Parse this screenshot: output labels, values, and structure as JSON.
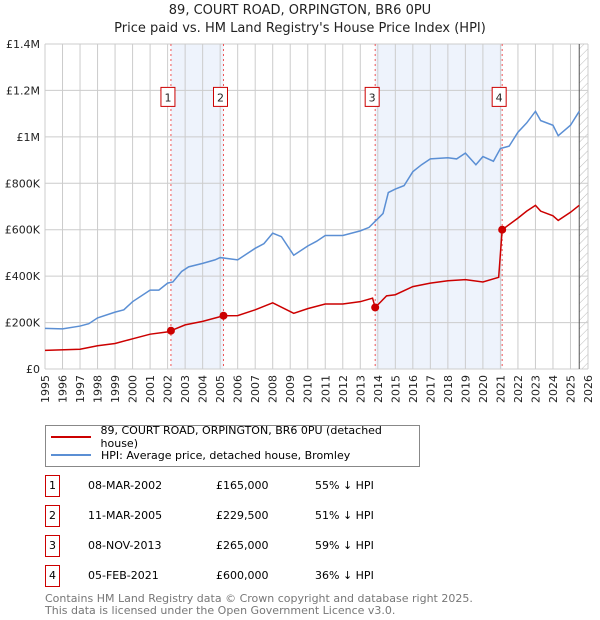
{
  "chart_data": {
    "type": "line",
    "title": "89, COURT ROAD, ORPINGTON, BR6 0PU",
    "subtitle": "Price paid vs. HM Land Registry's House Price Index (HPI)",
    "xlim": [
      1995,
      2026
    ],
    "ylim": [
      0,
      1400000
    ],
    "yticks": [
      {
        "v": 0,
        "label": "£0"
      },
      {
        "v": 200000,
        "label": "£200K"
      },
      {
        "v": 400000,
        "label": "£400K"
      },
      {
        "v": 600000,
        "label": "£600K"
      },
      {
        "v": 800000,
        "label": "£800K"
      },
      {
        "v": 1000000,
        "label": "£1M"
      },
      {
        "v": 1200000,
        "label": "£1.2M"
      },
      {
        "v": 1400000,
        "label": "£1.4M"
      }
    ],
    "xticks": [
      "1995",
      "1996",
      "1997",
      "1998",
      "1999",
      "2000",
      "2001",
      "2002",
      "2003",
      "2004",
      "2005",
      "2006",
      "2007",
      "2008",
      "2009",
      "2010",
      "2011",
      "2012",
      "2013",
      "2014",
      "2015",
      "2016",
      "2017",
      "2018",
      "2019",
      "2020",
      "2021",
      "2022",
      "2023",
      "2024",
      "2025",
      "2026"
    ],
    "series": [
      {
        "name": "89, COURT ROAD, ORPINGTON, BR6 0PU (detached house)",
        "color": "#cc0000",
        "points": [
          [
            1995,
            80
          ],
          [
            1997,
            85
          ],
          [
            1998,
            100
          ],
          [
            1999,
            110
          ],
          [
            2000,
            130
          ],
          [
            2001,
            150
          ],
          [
            2002,
            160
          ],
          [
            2002.19,
            165
          ],
          [
            2003,
            190
          ],
          [
            2004,
            205
          ],
          [
            2005.19,
            229.5
          ],
          [
            2006,
            230
          ],
          [
            2007,
            255
          ],
          [
            2008,
            285
          ],
          [
            2009.2,
            240
          ],
          [
            2010,
            260
          ],
          [
            2011,
            280
          ],
          [
            2012,
            280
          ],
          [
            2013,
            290
          ],
          [
            2013.7,
            305
          ],
          [
            2013.85,
            265
          ],
          [
            2014.5,
            315
          ],
          [
            2015,
            320
          ],
          [
            2016,
            355
          ],
          [
            2017,
            370
          ],
          [
            2018,
            380
          ],
          [
            2019,
            385
          ],
          [
            2020,
            375
          ],
          [
            2020.9,
            395
          ],
          [
            2021.1,
            600
          ],
          [
            2022,
            650
          ],
          [
            2022.5,
            680
          ],
          [
            2023,
            705
          ],
          [
            2023.3,
            680
          ],
          [
            2024,
            660
          ],
          [
            2024.3,
            640
          ],
          [
            2025,
            675
          ],
          [
            2025.5,
            705
          ]
        ]
      },
      {
        "name": "HPI: Average price, detached house, Bromley",
        "color": "#5b8fd4",
        "points": [
          [
            1995,
            175
          ],
          [
            1996,
            173
          ],
          [
            1997,
            185
          ],
          [
            1997.5,
            195
          ],
          [
            1998,
            220
          ],
          [
            1999,
            245
          ],
          [
            1999.5,
            255
          ],
          [
            2000,
            290
          ],
          [
            2001,
            340
          ],
          [
            2001.5,
            340
          ],
          [
            2002,
            370
          ],
          [
            2002.3,
            375
          ],
          [
            2002.8,
            420
          ],
          [
            2003.2,
            440
          ],
          [
            2004,
            455
          ],
          [
            2004.7,
            470
          ],
          [
            2005,
            480
          ],
          [
            2006,
            470
          ],
          [
            2007,
            520
          ],
          [
            2007.5,
            540
          ],
          [
            2008,
            585
          ],
          [
            2008.5,
            570
          ],
          [
            2009.2,
            490
          ],
          [
            2010,
            530
          ],
          [
            2010.5,
            550
          ],
          [
            2011,
            575
          ],
          [
            2012,
            575
          ],
          [
            2013,
            595
          ],
          [
            2013.5,
            610
          ],
          [
            2013.9,
            640
          ],
          [
            2014.3,
            670
          ],
          [
            2014.6,
            760
          ],
          [
            2015,
            775
          ],
          [
            2015.5,
            790
          ],
          [
            2016,
            850
          ],
          [
            2016.5,
            880
          ],
          [
            2017,
            905
          ],
          [
            2018,
            910
          ],
          [
            2018.5,
            905
          ],
          [
            2019,
            930
          ],
          [
            2019.6,
            880
          ],
          [
            2020,
            915
          ],
          [
            2020.6,
            895
          ],
          [
            2021,
            950
          ],
          [
            2021.5,
            960
          ],
          [
            2022,
            1020
          ],
          [
            2022.5,
            1060
          ],
          [
            2023,
            1110
          ],
          [
            2023.3,
            1070
          ],
          [
            2024,
            1050
          ],
          [
            2024.3,
            1005
          ],
          [
            2025,
            1050
          ],
          [
            2025.5,
            1110
          ]
        ]
      }
    ],
    "y_units": "thousands GBP",
    "sales": [
      {
        "n": "1",
        "x": 2002.19,
        "price": 165,
        "date": "08-MAR-2002",
        "price_label": "£165,000",
        "hpi": "55% ↓ HPI"
      },
      {
        "n": "2",
        "x": 2005.19,
        "price": 229.5,
        "date": "11-MAR-2005",
        "price_label": "£229,500",
        "hpi": "51% ↓ HPI"
      },
      {
        "n": "3",
        "x": 2013.85,
        "price": 265,
        "date": "08-NOV-2013",
        "price_label": "£265,000",
        "hpi": "59% ↓ HPI"
      },
      {
        "n": "4",
        "x": 2021.1,
        "price": 600,
        "date": "05-FEB-2021",
        "price_label": "£600,000",
        "hpi": "36% ↓ HPI"
      }
    ],
    "shaded": [
      [
        2002.19,
        2005.19
      ],
      [
        2013.85,
        2021.1
      ]
    ],
    "forecast_from": 2025.5
  },
  "footer": [
    "Contains HM Land Registry data © Crown copyright and database right 2025.",
    "This data is licensed under the Open Government Licence v3.0."
  ]
}
